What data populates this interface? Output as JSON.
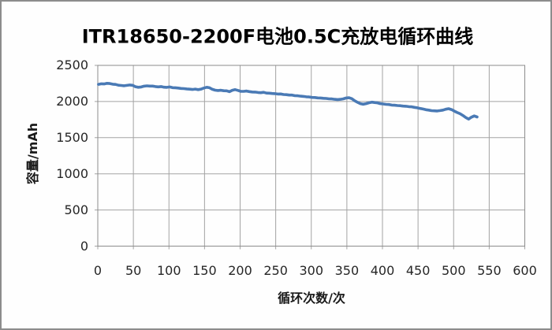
{
  "colors": {
    "background": "#fefefe",
    "outer_border": "#8c8c8c",
    "plot_border": "#8c8c8c",
    "gridline": "#a3a3a3",
    "series_line": "#4a7ab5",
    "tick_text": "#262626",
    "title_text": "#000000"
  },
  "chart_data": {
    "type": "line",
    "title": "ITR18650-2200F电池0.5C充放电循环曲线",
    "xlabel": "循环次数/次",
    "ylabel": "容量/mAh",
    "xlim": [
      0,
      600
    ],
    "ylim": [
      0,
      2500
    ],
    "xticks": [
      0,
      50,
      100,
      150,
      200,
      250,
      300,
      350,
      400,
      450,
      500,
      550,
      600
    ],
    "yticks": [
      0,
      500,
      1000,
      1500,
      2000,
      2500
    ],
    "grid": "both",
    "legend": "none",
    "series": [
      {
        "name": "容量/mAh",
        "x": [
          1,
          5,
          9,
          13,
          17,
          21,
          25,
          29,
          33,
          37,
          41,
          45,
          49,
          53,
          57,
          61,
          65,
          69,
          73,
          77,
          81,
          85,
          89,
          93,
          97,
          101,
          105,
          109,
          113,
          117,
          121,
          125,
          129,
          133,
          137,
          141,
          145,
          149,
          153,
          157,
          161,
          165,
          169,
          173,
          177,
          181,
          185,
          189,
          193,
          197,
          201,
          205,
          209,
          213,
          217,
          221,
          225,
          229,
          233,
          237,
          241,
          245,
          249,
          253,
          257,
          261,
          265,
          269,
          273,
          277,
          281,
          285,
          289,
          293,
          297,
          301,
          305,
          309,
          313,
          317,
          321,
          325,
          329,
          333,
          337,
          341,
          345,
          349,
          353,
          357,
          361,
          365,
          369,
          373,
          377,
          381,
          385,
          389,
          393,
          397,
          401,
          405,
          409,
          413,
          417,
          421,
          425,
          429,
          433,
          437,
          441,
          445,
          449,
          453,
          457,
          461,
          465,
          469,
          473,
          477,
          481,
          485,
          489,
          493,
          497,
          501,
          505,
          509,
          513,
          517,
          521,
          525,
          529,
          533
        ],
        "y": [
          2238,
          2245,
          2243,
          2252,
          2248,
          2240,
          2236,
          2226,
          2222,
          2218,
          2223,
          2229,
          2224,
          2205,
          2197,
          2202,
          2212,
          2217,
          2213,
          2214,
          2207,
          2203,
          2207,
          2198,
          2196,
          2201,
          2192,
          2191,
          2186,
          2181,
          2179,
          2174,
          2171,
          2167,
          2172,
          2164,
          2171,
          2186,
          2197,
          2191,
          2169,
          2157,
          2153,
          2156,
          2149,
          2148,
          2136,
          2156,
          2165,
          2154,
          2141,
          2140,
          2145,
          2137,
          2132,
          2131,
          2125,
          2122,
          2127,
          2117,
          2116,
          2111,
          2109,
          2104,
          2105,
          2097,
          2095,
          2089,
          2089,
          2081,
          2080,
          2074,
          2071,
          2065,
          2063,
          2057,
          2056,
          2050,
          2049,
          2045,
          2043,
          2037,
          2036,
          2031,
          2027,
          2031,
          2037,
          2049,
          2052,
          2039,
          2011,
          1989,
          1971,
          1963,
          1971,
          1983,
          1991,
          1986,
          1981,
          1971,
          1966,
          1961,
          1959,
          1951,
          1949,
          1944,
          1942,
          1937,
          1935,
          1929,
          1927,
          1919,
          1913,
          1904,
          1897,
          1887,
          1881,
          1874,
          1872,
          1869,
          1875,
          1881,
          1893,
          1901,
          1889,
          1867,
          1847,
          1831,
          1807,
          1779,
          1757,
          1783,
          1801,
          1786
        ]
      }
    ]
  }
}
